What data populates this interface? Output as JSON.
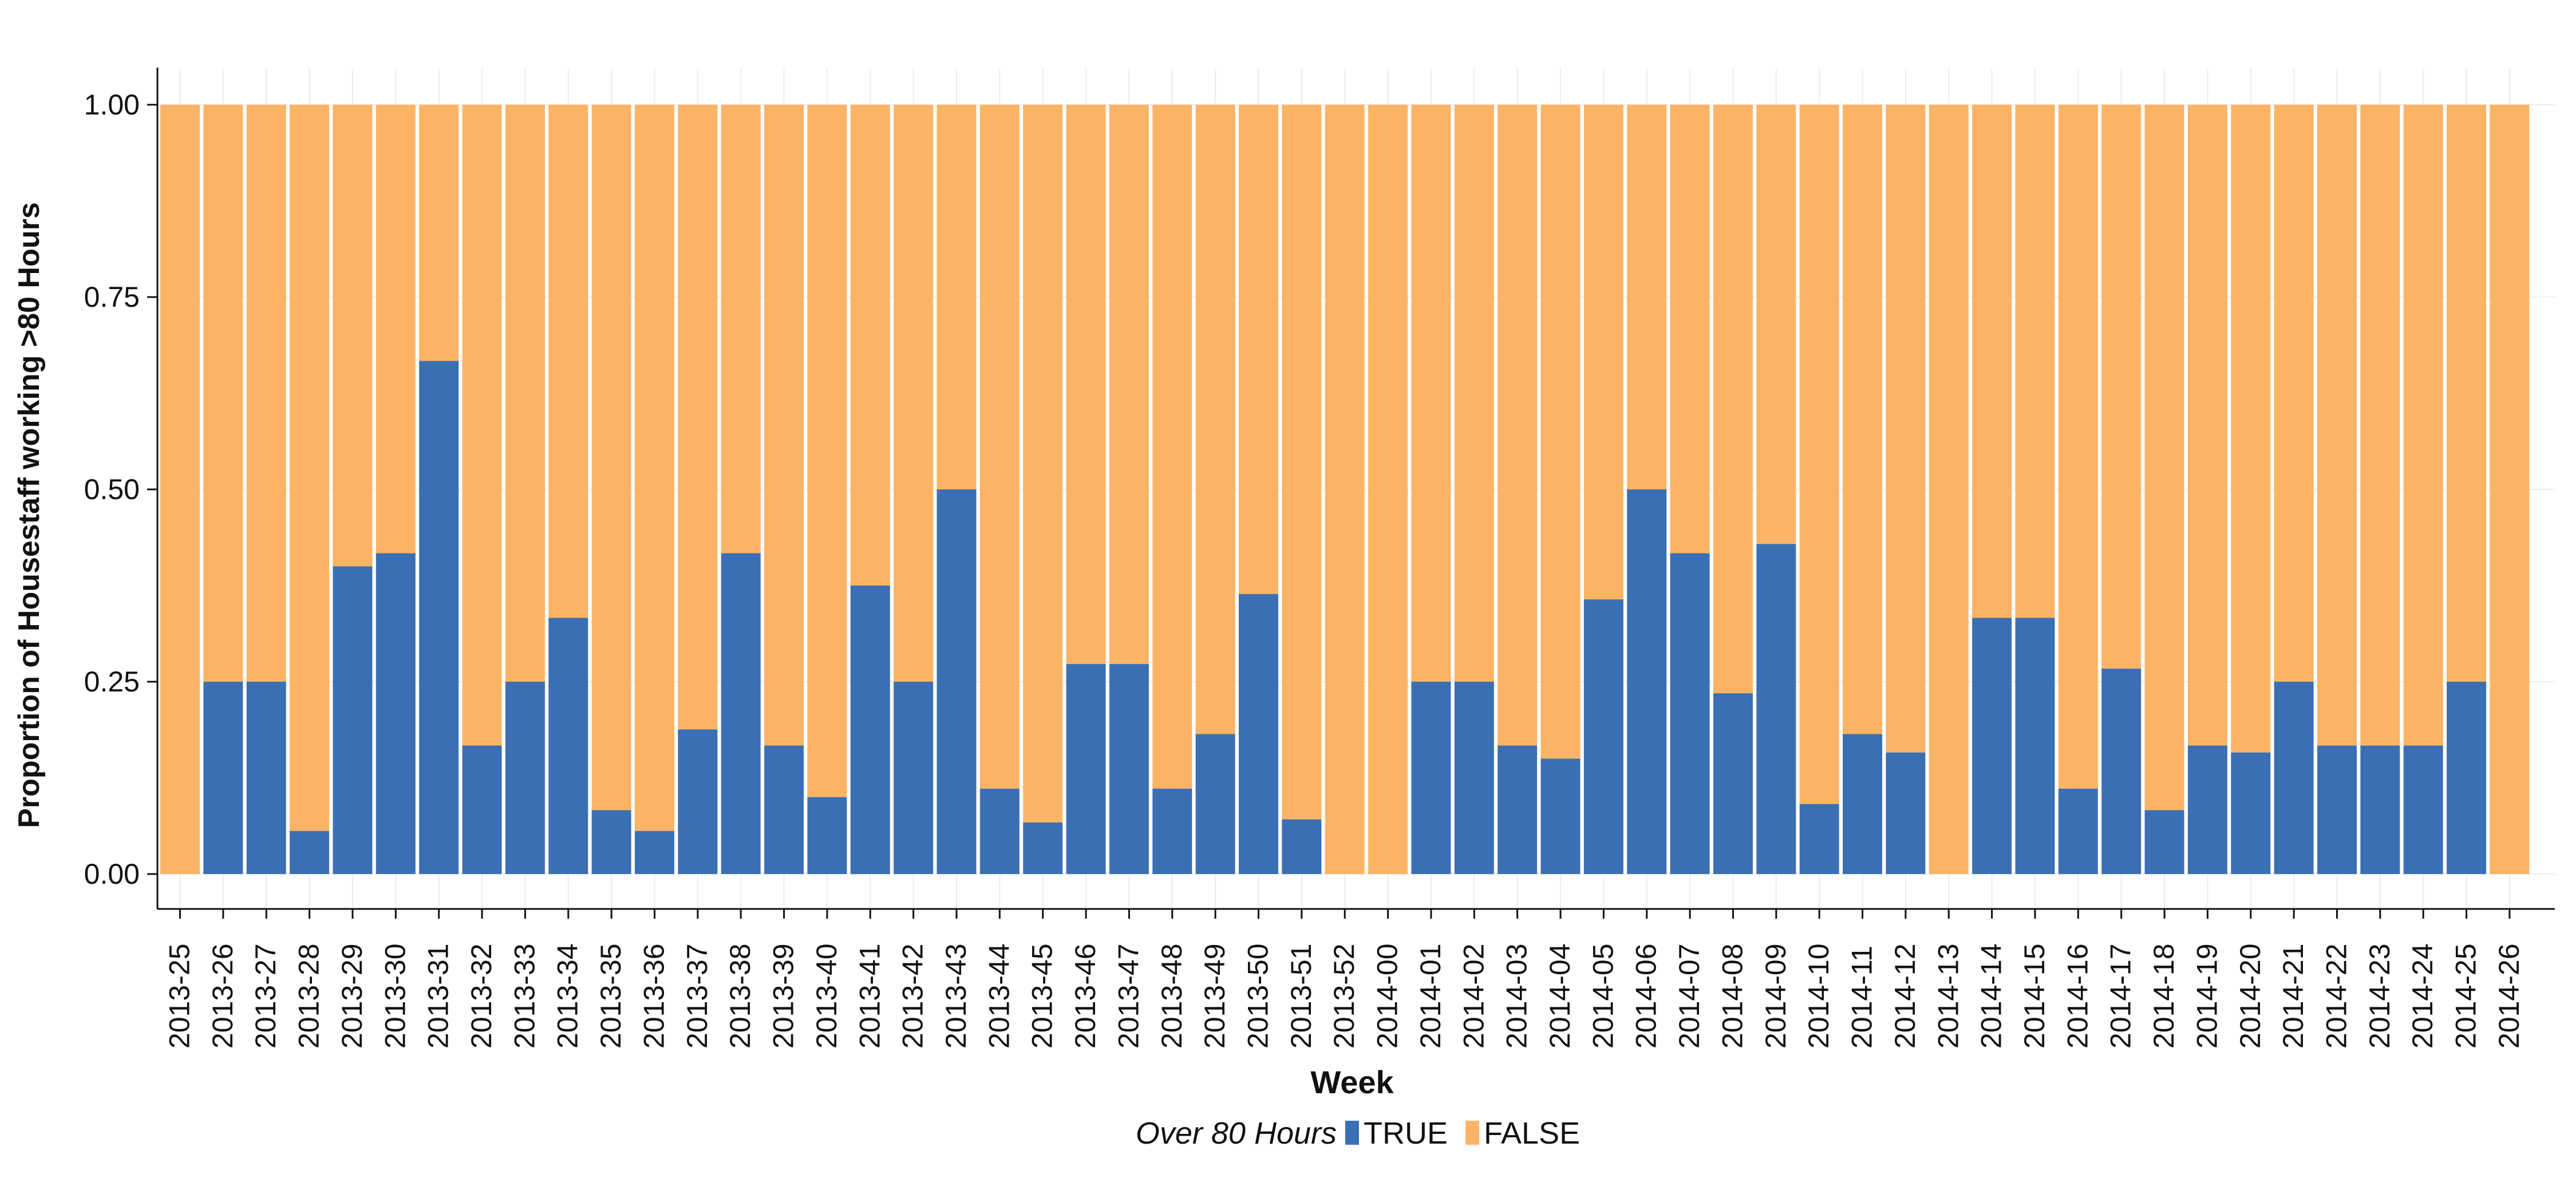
{
  "chart_data": {
    "type": "bar",
    "stacked": true,
    "xlabel": "Week",
    "ylabel": "Proportion of Housestaff working >80 Hours",
    "ylim": [
      0,
      1
    ],
    "yticks": [
      "0.00",
      "0.25",
      "0.50",
      "0.75",
      "1.00"
    ],
    "ytick_values": [
      0,
      0.25,
      0.5,
      0.75,
      1.0
    ],
    "grid": false,
    "legend_position": "bottom",
    "legend_title": "Over 80 Hours",
    "categories": [
      "2013-25",
      "2013-26",
      "2013-27",
      "2013-28",
      "2013-29",
      "2013-30",
      "2013-31",
      "2013-32",
      "2013-33",
      "2013-34",
      "2013-35",
      "2013-36",
      "2013-37",
      "2013-38",
      "2013-39",
      "2013-40",
      "2013-41",
      "2013-42",
      "2013-43",
      "2013-44",
      "2013-45",
      "2013-46",
      "2013-47",
      "2013-48",
      "2013-49",
      "2013-50",
      "2013-51",
      "2013-52",
      "2014-00",
      "2014-01",
      "2014-02",
      "2014-03",
      "2014-04",
      "2014-05",
      "2014-06",
      "2014-07",
      "2014-08",
      "2014-09",
      "2014-10",
      "2014-11",
      "2014-12",
      "2014-13",
      "2014-14",
      "2014-15",
      "2014-16",
      "2014-17",
      "2014-18",
      "2014-19",
      "2014-20",
      "2014-21",
      "2014-22",
      "2014-23",
      "2014-24",
      "2014-25",
      "2014-26"
    ],
    "series": [
      {
        "name": "TRUE",
        "color": "#3B6FB4",
        "values": [
          0.0,
          0.25,
          0.25,
          0.056,
          0.4,
          0.417,
          0.667,
          0.167,
          0.25,
          0.333,
          0.083,
          0.056,
          0.188,
          0.417,
          0.167,
          0.1,
          0.375,
          0.25,
          0.5,
          0.111,
          0.067,
          0.273,
          0.273,
          0.111,
          0.182,
          0.364,
          0.071,
          0.0,
          0.0,
          0.25,
          0.25,
          0.167,
          0.15,
          0.357,
          0.5,
          0.417,
          0.235,
          0.429,
          0.091,
          0.182,
          0.158,
          0.0,
          0.333,
          0.333,
          0.111,
          0.267,
          0.083,
          0.167,
          0.158,
          0.25,
          0.167,
          0.167,
          0.167,
          0.25,
          0.0
        ]
      },
      {
        "name": "FALSE",
        "color": "#FBB465",
        "values": [
          1.0,
          0.75,
          0.75,
          0.944,
          0.6,
          0.583,
          0.333,
          0.833,
          0.75,
          0.667,
          0.917,
          0.944,
          0.812,
          0.583,
          0.833,
          0.9,
          0.625,
          0.75,
          0.5,
          0.889,
          0.933,
          0.727,
          0.727,
          0.889,
          0.818,
          0.636,
          0.929,
          1.0,
          1.0,
          0.75,
          0.75,
          0.833,
          0.85,
          0.643,
          0.5,
          0.583,
          0.765,
          0.571,
          0.909,
          0.818,
          0.842,
          1.0,
          0.667,
          0.667,
          0.889,
          0.733,
          0.917,
          0.833,
          0.842,
          0.75,
          0.833,
          0.833,
          0.833,
          0.75,
          1.0
        ]
      }
    ]
  },
  "colors": {
    "true": "#3B6FB4",
    "false": "#FBB465",
    "axis": "#111111",
    "gridline": "#ECECEC",
    "background": "#FFFFFF"
  }
}
